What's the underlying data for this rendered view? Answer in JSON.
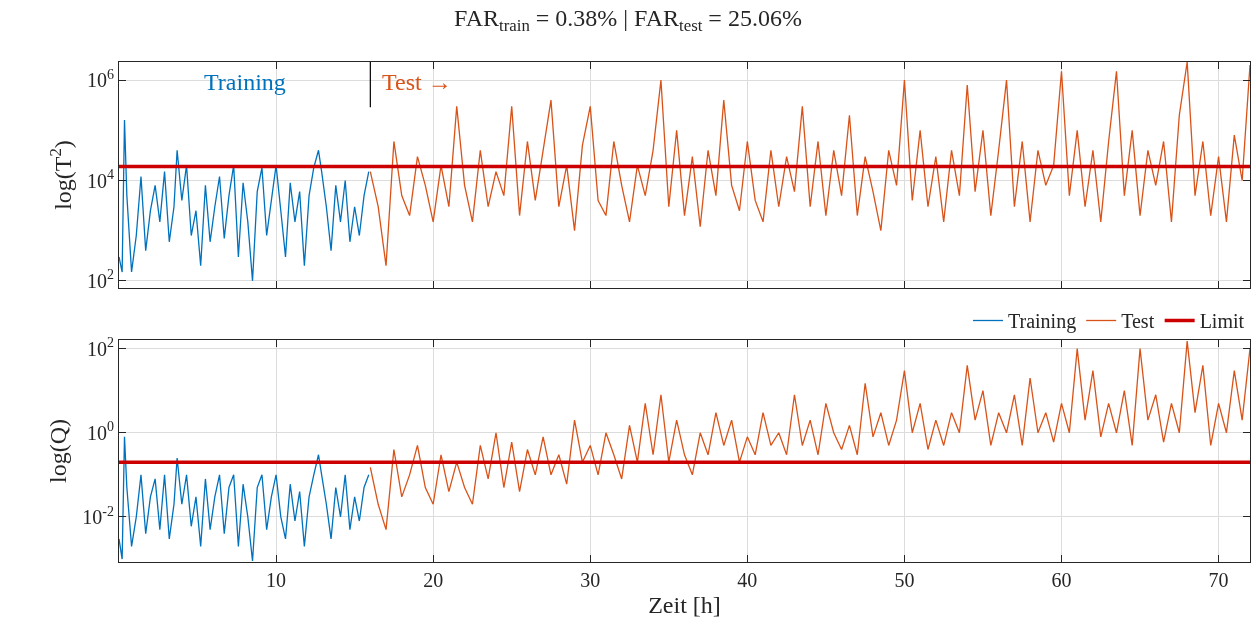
{
  "chart_data": [
    {
      "type": "line",
      "title": "FAR$_{train}$ = 0.38% | FAR$_{test}$ = 25.06%",
      "ylabel": "log(T$^{2}$)",
      "log": "y",
      "grid": true,
      "legend": false,
      "tick_labels": "y",
      "xlim": [
        0,
        72
      ],
      "xticks": [
        10,
        20,
        30,
        40,
        50,
        60,
        70
      ],
      "ylim": [
        72,
        2300000
      ],
      "yticks": [
        {
          "value": 100,
          "label": "10$^{2}$"
        },
        {
          "value": 10000,
          "label": "10$^{4}$"
        },
        {
          "value": 1000000,
          "label": "10$^{6}$"
        }
      ],
      "annotations": [
        "Training",
        "Test →"
      ],
      "ref_lines": [
        {
          "axis": "x",
          "value": 16,
          "color": "#000000"
        }
      ],
      "series": [
        {
          "color": "#0072bd",
          "x": [
            0,
            0.2,
            0.35,
            0.5,
            0.8,
            1.1,
            1.4,
            1.7,
            2,
            2.3,
            2.6,
            2.9,
            3.2,
            3.5,
            3.7,
            4,
            4.3,
            4.6,
            4.9,
            5.2,
            5.5,
            5.8,
            6.1,
            6.4,
            6.7,
            7,
            7.3,
            7.6,
            7.9,
            8.2,
            8.5,
            8.8,
            9.1,
            9.4,
            9.7,
            10,
            10.3,
            10.6,
            10.9,
            11.2,
            11.5,
            11.8,
            12.1,
            12.4,
            12.7,
            12.9,
            13.2,
            13.5,
            13.8,
            14.1,
            14.4,
            14.7,
            15,
            15.3,
            15.6,
            15.9
          ],
          "values": [
            300,
            150,
            160000,
            5000,
            150,
            800,
            12000,
            400,
            2500,
            8000,
            1500,
            15000,
            600,
            3000,
            40000,
            4000,
            20000,
            800,
            2500,
            200,
            8000,
            600,
            3000,
            12000,
            700,
            5000,
            20000,
            300,
            9000,
            1500,
            100,
            6000,
            18000,
            800,
            4000,
            20000,
            2500,
            300,
            9000,
            1500,
            6000,
            200,
            5000,
            18000,
            40000,
            15000,
            3000,
            400,
            8000,
            1500,
            10000,
            600,
            3000,
            800,
            5000,
            15000
          ]
        },
        {
          "color": "#d95319",
          "x": [
            16,
            16.5,
            17,
            17.5,
            18,
            18.5,
            19,
            19.5,
            20,
            20.5,
            21,
            21.5,
            22,
            22.5,
            23,
            23.5,
            24,
            24.5,
            25,
            25.5,
            26,
            26.5,
            27,
            27.5,
            28,
            28.5,
            29,
            29.5,
            30,
            30.5,
            31,
            31.5,
            32,
            32.5,
            33,
            33.5,
            34,
            34.5,
            35,
            35.5,
            36,
            36.5,
            37,
            37.5,
            38,
            38.5,
            39,
            39.5,
            40,
            40.5,
            41,
            41.5,
            42,
            42.5,
            43,
            43.5,
            44,
            44.5,
            45,
            45.5,
            46,
            46.5,
            47,
            47.5,
            48,
            48.5,
            49,
            49.5,
            50,
            50.5,
            51,
            51.5,
            52,
            52.5,
            53,
            53.5,
            54,
            54.5,
            55,
            55.5,
            56,
            56.5,
            57,
            57.5,
            58,
            58.5,
            59,
            59.5,
            60,
            60.5,
            61,
            61.5,
            62,
            62.5,
            63,
            63.5,
            64,
            64.5,
            65,
            65.5,
            66,
            66.5,
            67,
            67.5,
            68,
            68.5,
            69,
            69.5,
            70,
            70.5,
            71,
            71.5,
            72
          ],
          "values": [
            15000,
            3000,
            200,
            60000,
            5000,
            2000,
            30000,
            8000,
            1500,
            20000,
            3000,
            300000,
            8000,
            1500,
            40000,
            3000,
            15000,
            5000,
            300000,
            2000,
            60000,
            4000,
            40000,
            400000,
            3000,
            20000,
            1000,
            50000,
            300000,
            4000,
            2000,
            60000,
            8000,
            1500,
            20000,
            5000,
            40000,
            1000000,
            3000,
            100000,
            2000,
            30000,
            1200,
            40000,
            5000,
            400000,
            8000,
            2500,
            60000,
            4000,
            1500,
            40000,
            3000,
            30000,
            6000,
            300000,
            3000,
            60000,
            2000,
            40000,
            5000,
            200000,
            2000,
            30000,
            6000,
            1000,
            40000,
            8000,
            1000000,
            4000,
            100000,
            3000,
            30000,
            1500,
            40000,
            5000,
            800000,
            6000,
            100000,
            2000,
            40000,
            1000000,
            3000,
            60000,
            1500,
            40000,
            8000,
            20000,
            1500000,
            5000,
            100000,
            3000,
            40000,
            1500,
            60000,
            1500000,
            5000,
            100000,
            2000,
            40000,
            8000,
            60000,
            1500,
            200000,
            2300000,
            5000,
            60000,
            2000,
            30000,
            1500,
            80000,
            10000,
            2000000
          ]
        },
        {
          "color": "#cc0000",
          "x": [
            0,
            72
          ],
          "values": [
            19000,
            19000
          ]
        }
      ]
    },
    {
      "type": "line",
      "xlabel": "Zeit [h]",
      "ylabel": "log(Q)",
      "log": "y",
      "grid": true,
      "legend": "top right",
      "xlim": [
        0,
        72
      ],
      "xticks": [
        10,
        20,
        30,
        40,
        50,
        60,
        70
      ],
      "ylim": [
        0.00085,
        160
      ],
      "yticks": [
        {
          "value": 0.01,
          "label": "10$^{-2}$"
        },
        {
          "value": 1,
          "label": "10$^{0}$"
        },
        {
          "value": 100,
          "label": "10$^{2}$"
        }
      ],
      "series": [
        {
          "name": "Training",
          "color": "#0072bd",
          "x": [
            0,
            0.2,
            0.35,
            0.5,
            0.8,
            1.1,
            1.4,
            1.7,
            2,
            2.3,
            2.6,
            2.9,
            3.2,
            3.5,
            3.7,
            4,
            4.3,
            4.6,
            4.9,
            5.2,
            5.5,
            5.8,
            6.1,
            6.4,
            6.7,
            7,
            7.3,
            7.6,
            7.9,
            8.2,
            8.5,
            8.8,
            9.1,
            9.4,
            9.7,
            10,
            10.3,
            10.6,
            10.9,
            11.2,
            11.5,
            11.8,
            12.1,
            12.4,
            12.7,
            12.9,
            13.2,
            13.5,
            13.8,
            14.1,
            14.4,
            14.7,
            15,
            15.3,
            15.6,
            15.9
          ],
          "values": [
            0.003,
            0.001,
            0.8,
            0.05,
            0.002,
            0.01,
            0.1,
            0.004,
            0.03,
            0.08,
            0.005,
            0.1,
            0.003,
            0.02,
            0.25,
            0.02,
            0.1,
            0.006,
            0.03,
            0.002,
            0.08,
            0.005,
            0.03,
            0.1,
            0.004,
            0.05,
            0.1,
            0.002,
            0.06,
            0.01,
            0.0009,
            0.05,
            0.1,
            0.005,
            0.03,
            0.1,
            0.01,
            0.003,
            0.06,
            0.008,
            0.04,
            0.002,
            0.03,
            0.1,
            0.3,
            0.1,
            0.02,
            0.003,
            0.05,
            0.01,
            0.1,
            0.005,
            0.03,
            0.008,
            0.05,
            0.1
          ]
        },
        {
          "name": "Test",
          "color": "#d95319",
          "x": [
            16,
            16.5,
            17,
            17.5,
            18,
            18.5,
            19,
            19.5,
            20,
            20.5,
            21,
            21.5,
            22,
            22.5,
            23,
            23.5,
            24,
            24.5,
            25,
            25.5,
            26,
            26.5,
            27,
            27.5,
            28,
            28.5,
            29,
            29.5,
            30,
            30.5,
            31,
            31.5,
            32,
            32.5,
            33,
            33.5,
            34,
            34.5,
            35,
            35.5,
            36,
            36.5,
            37,
            37.5,
            38,
            38.5,
            39,
            39.5,
            40,
            40.5,
            41,
            41.5,
            42,
            42.5,
            43,
            43.5,
            44,
            44.5,
            45,
            45.5,
            46,
            46.5,
            47,
            47.5,
            48,
            48.5,
            49,
            49.5,
            50,
            50.5,
            51,
            51.5,
            52,
            52.5,
            53,
            53.5,
            54,
            54.5,
            55,
            55.5,
            56,
            56.5,
            57,
            57.5,
            58,
            58.5,
            59,
            59.5,
            60,
            60.5,
            61,
            61.5,
            62,
            62.5,
            63,
            63.5,
            64,
            64.5,
            65,
            65.5,
            66,
            66.5,
            67,
            67.5,
            68,
            68.5,
            69,
            69.5,
            70,
            70.5,
            71,
            71.5,
            72
          ],
          "values": [
            0.15,
            0.02,
            0.005,
            0.4,
            0.03,
            0.1,
            0.5,
            0.05,
            0.02,
            0.3,
            0.04,
            0.2,
            0.05,
            0.02,
            0.5,
            0.08,
            1,
            0.05,
            0.6,
            0.04,
            0.4,
            0.1,
            0.8,
            0.1,
            0.3,
            0.06,
            2,
            0.2,
            0.5,
            0.1,
            1,
            0.3,
            0.08,
            1.5,
            0.2,
            5,
            0.3,
            8,
            0.2,
            2,
            0.3,
            0.1,
            1,
            0.3,
            3,
            0.5,
            2,
            0.2,
            0.8,
            0.3,
            3,
            0.5,
            1,
            0.3,
            8,
            0.5,
            2,
            0.3,
            5,
            1,
            0.4,
            1.5,
            0.3,
            15,
            0.8,
            3,
            0.5,
            2,
            30,
            1,
            5,
            0.4,
            2,
            0.5,
            3,
            1,
            40,
            2,
            10,
            0.5,
            3,
            1,
            8,
            0.5,
            20,
            1,
            3,
            0.6,
            5,
            1,
            100,
            2,
            30,
            0.8,
            5,
            1,
            10,
            0.5,
            100,
            2,
            8,
            0.6,
            5,
            1,
            150,
            3,
            40,
            0.5,
            5,
            1,
            30,
            2,
            100
          ]
        },
        {
          "name": "Limit",
          "color": "#cc0000",
          "x": [
            0,
            72
          ],
          "values": [
            0.2,
            0.2
          ]
        }
      ]
    }
  ]
}
